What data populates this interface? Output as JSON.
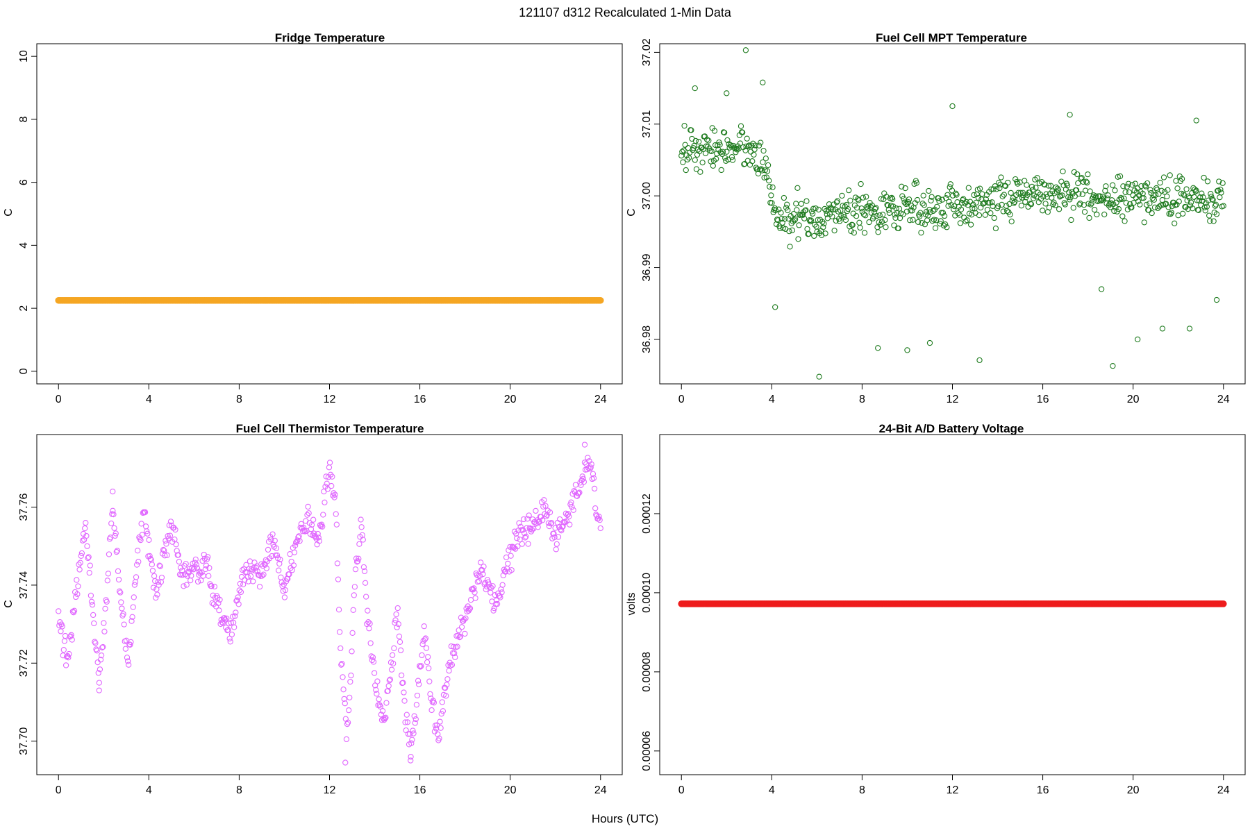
{
  "figure": {
    "title": "121107   d312   Recalculated 1-Min Data",
    "xlabel": "Hours (UTC)"
  },
  "chart_data": [
    {
      "type": "scatter",
      "title": "Fridge Temperature",
      "xlabel": "",
      "ylabel": "C",
      "xlim": [
        -0.96,
        24.96
      ],
      "ylim": [
        -0.4,
        10.4
      ],
      "xticks": [
        0,
        4,
        8,
        12,
        16,
        20,
        24
      ],
      "yticks": [
        0,
        2,
        4,
        6,
        8,
        10
      ],
      "ytick_labels": [
        "0",
        "2",
        "4",
        "6",
        "8",
        "10"
      ],
      "color": "#f5a623",
      "marker": "filled-circle",
      "grid": false,
      "series": [
        {
          "constant": 2.25,
          "x_range": [
            0,
            24
          ]
        }
      ]
    },
    {
      "type": "scatter",
      "title": "Fuel Cell MPT Temperature",
      "xlabel": "",
      "ylabel": "C",
      "xlim": [
        -0.96,
        24.96
      ],
      "ylim": [
        36.9738,
        37.0212
      ],
      "xticks": [
        0,
        4,
        8,
        12,
        16,
        20,
        24
      ],
      "yticks": [
        36.98,
        36.99,
        37.0,
        37.01,
        37.02
      ],
      "ytick_labels": [
        "36.98",
        "36.99",
        "37.00",
        "37.01",
        "37.02"
      ],
      "color": "#1e7b1e",
      "marker": "open-circle",
      "grid": false,
      "series": [
        {
          "profile": [
            [
              0,
              37.0065
            ],
            [
              1,
              37.006
            ],
            [
              2,
              37.007
            ],
            [
              3,
              37.0065
            ],
            [
              3.7,
              37.0045
            ],
            [
              4.2,
              36.9965
            ],
            [
              6,
              36.997
            ],
            [
              8,
              36.998
            ],
            [
              12,
              36.9985
            ],
            [
              16,
              37.0005
            ],
            [
              20,
              36.9995
            ],
            [
              24,
              36.9995
            ]
          ],
          "spread": 0.0045,
          "extremes": [
            [
              2.85,
              37.0203
            ],
            [
              12,
              37.0125
            ],
            [
              6.1,
              36.9748
            ],
            [
              13.2,
              36.9771
            ],
            [
              19.1,
              36.9763
            ],
            [
              20.2,
              36.98
            ],
            [
              11,
              36.9795
            ],
            [
              10,
              36.9785
            ],
            [
              8.7,
              36.9788
            ],
            [
              4.15,
              36.9845
            ],
            [
              21.3,
              36.9815
            ],
            [
              22.5,
              36.9815
            ],
            [
              18.6,
              36.987
            ],
            [
              23.7,
              36.9855
            ],
            [
              22.8,
              37.0105
            ],
            [
              17.2,
              37.0113
            ],
            [
              2,
              37.0143
            ],
            [
              0.6,
              37.015
            ],
            [
              3.6,
              37.0158
            ]
          ]
        }
      ]
    },
    {
      "type": "scatter",
      "title": "Fuel Cell Thermistor Temperature",
      "xlabel": "",
      "ylabel": "C",
      "xlim": [
        -0.96,
        24.96
      ],
      "ylim": [
        37.6914,
        37.7786
      ],
      "xticks": [
        0,
        4,
        8,
        12,
        16,
        20,
        24
      ],
      "yticks": [
        37.7,
        37.72,
        37.74,
        37.76
      ],
      "ytick_labels": [
        "37.70",
        "37.72",
        "37.74",
        "37.76"
      ],
      "color": "#e066ff",
      "marker": "open-circle",
      "grid": false,
      "series": [
        {
          "profile": [
            [
              0,
              37.732
            ],
            [
              0.4,
              37.72
            ],
            [
              0.8,
              37.738
            ],
            [
              1.2,
              37.755
            ],
            [
              1.6,
              37.728
            ],
            [
              1.8,
              37.716
            ],
            [
              2.1,
              37.735
            ],
            [
              2.4,
              37.76
            ],
            [
              2.8,
              37.735
            ],
            [
              3.1,
              37.72
            ],
            [
              3.5,
              37.748
            ],
            [
              3.8,
              37.758
            ],
            [
              4.3,
              37.738
            ],
            [
              4.8,
              37.75
            ],
            [
              5,
              37.756
            ],
            [
              5.5,
              37.742
            ],
            [
              6,
              37.743
            ],
            [
              6.5,
              37.746
            ],
            [
              7,
              37.735
            ],
            [
              7.6,
              37.728
            ],
            [
              8.2,
              37.742
            ],
            [
              9,
              37.744
            ],
            [
              9.5,
              37.752
            ],
            [
              10,
              37.738
            ],
            [
              10.5,
              37.75
            ],
            [
              11,
              37.757
            ],
            [
              11.5,
              37.752
            ],
            [
              12,
              37.77
            ],
            [
              12.3,
              37.758
            ],
            [
              12.5,
              37.72
            ],
            [
              12.8,
              37.7
            ],
            [
              13.1,
              37.74
            ],
            [
              13.4,
              37.757
            ],
            [
              13.7,
              37.73
            ],
            [
              14,
              37.715
            ],
            [
              14.4,
              37.705
            ],
            [
              14.8,
              37.722
            ],
            [
              15,
              37.733
            ],
            [
              15.3,
              37.71
            ],
            [
              15.6,
              37.697
            ],
            [
              15.9,
              37.713
            ],
            [
              16.2,
              37.728
            ],
            [
              16.5,
              37.712
            ],
            [
              16.8,
              37.7
            ],
            [
              17.2,
              37.716
            ],
            [
              17.6,
              37.725
            ],
            [
              18.2,
              37.735
            ],
            [
              18.7,
              37.743
            ],
            [
              19.3,
              37.735
            ],
            [
              19.8,
              37.743
            ],
            [
              20.3,
              37.752
            ],
            [
              21,
              37.755
            ],
            [
              21.5,
              37.76
            ],
            [
              22,
              37.752
            ],
            [
              22.6,
              37.758
            ],
            [
              23.2,
              37.768
            ],
            [
              23.5,
              37.772
            ],
            [
              23.9,
              37.757
            ]
          ],
          "spread": 0.005,
          "extremes": [
            [
              12.7,
              37.6945
            ],
            [
              15.6,
              37.696
            ],
            [
              23.3,
              37.776
            ],
            [
              2.4,
              37.764
            ],
            [
              1.8,
              37.713
            ]
          ]
        }
      ]
    },
    {
      "type": "scatter",
      "title": "24-Bit A/D Battery Voltage",
      "xlabel": "",
      "ylabel": "volts",
      "xlim": [
        -0.96,
        24.96
      ],
      "ylim": [
        5.4e-05,
        0.00014
      ],
      "xticks": [
        0,
        4,
        8,
        12,
        16,
        20,
        24
      ],
      "yticks": [
        6e-05,
        8e-05,
        0.0001,
        0.00012
      ],
      "ytick_labels": [
        "0.00006",
        "0.00008",
        "0.00010",
        "0.00012"
      ],
      "color": "#ee1c1c",
      "marker": "filled-circle",
      "grid": false,
      "series": [
        {
          "constant": 9.72e-05,
          "x_range": [
            0,
            24
          ]
        }
      ]
    }
  ]
}
